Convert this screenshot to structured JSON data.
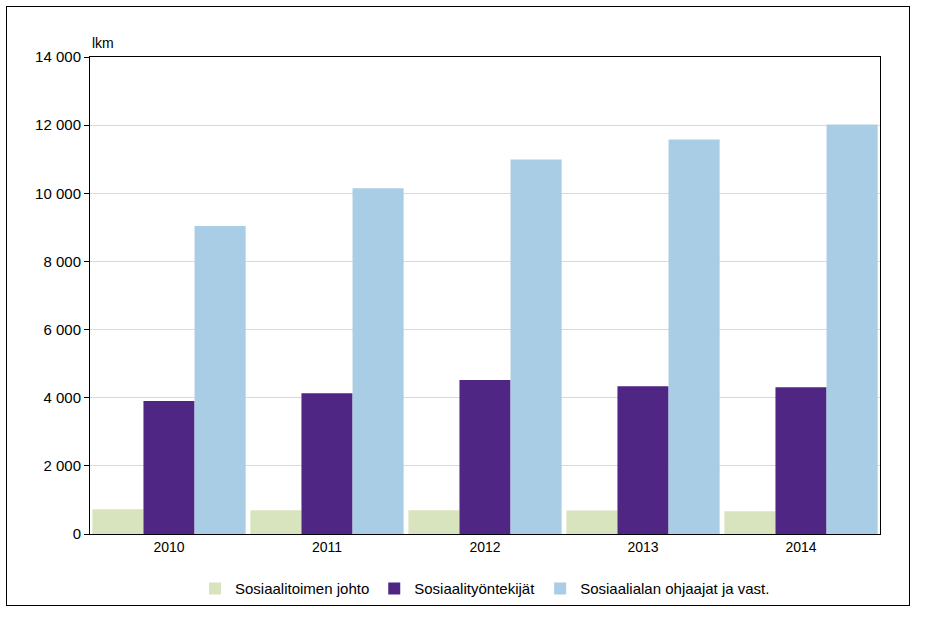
{
  "chart_data": {
    "type": "bar",
    "y_label": "lkm",
    "categories": [
      "2010",
      "2011",
      "2012",
      "2013",
      "2014"
    ],
    "series": [
      {
        "name": "Sosiaalitoimen johto",
        "color": "#d7e4bd",
        "values": [
          730,
          700,
          700,
          690,
          670
        ]
      },
      {
        "name": "Sosiaalityöntekijät",
        "color": "#4f2683",
        "values": [
          3900,
          4130,
          4520,
          4340,
          4310
        ]
      },
      {
        "name": "Sosiaalialan ohjaajat ja vast.",
        "color": "#a9cde5",
        "values": [
          9040,
          10150,
          10990,
          11580,
          12020
        ]
      }
    ],
    "ylim": [
      0,
      14000
    ],
    "yticks": [
      0,
      {
        "value": 2000,
        "label": "2 000"
      },
      {
        "value": 4000,
        "label": "4 000"
      },
      {
        "value": 6000,
        "label": "6 000"
      },
      {
        "value": 8000,
        "label": "8 000"
      },
      {
        "value": 10000,
        "label": "10 000"
      },
      {
        "value": 12000,
        "label": "12 000"
      },
      {
        "value": 14000,
        "label": "14 000"
      }
    ],
    "grid": true,
    "legend": "bottom"
  }
}
